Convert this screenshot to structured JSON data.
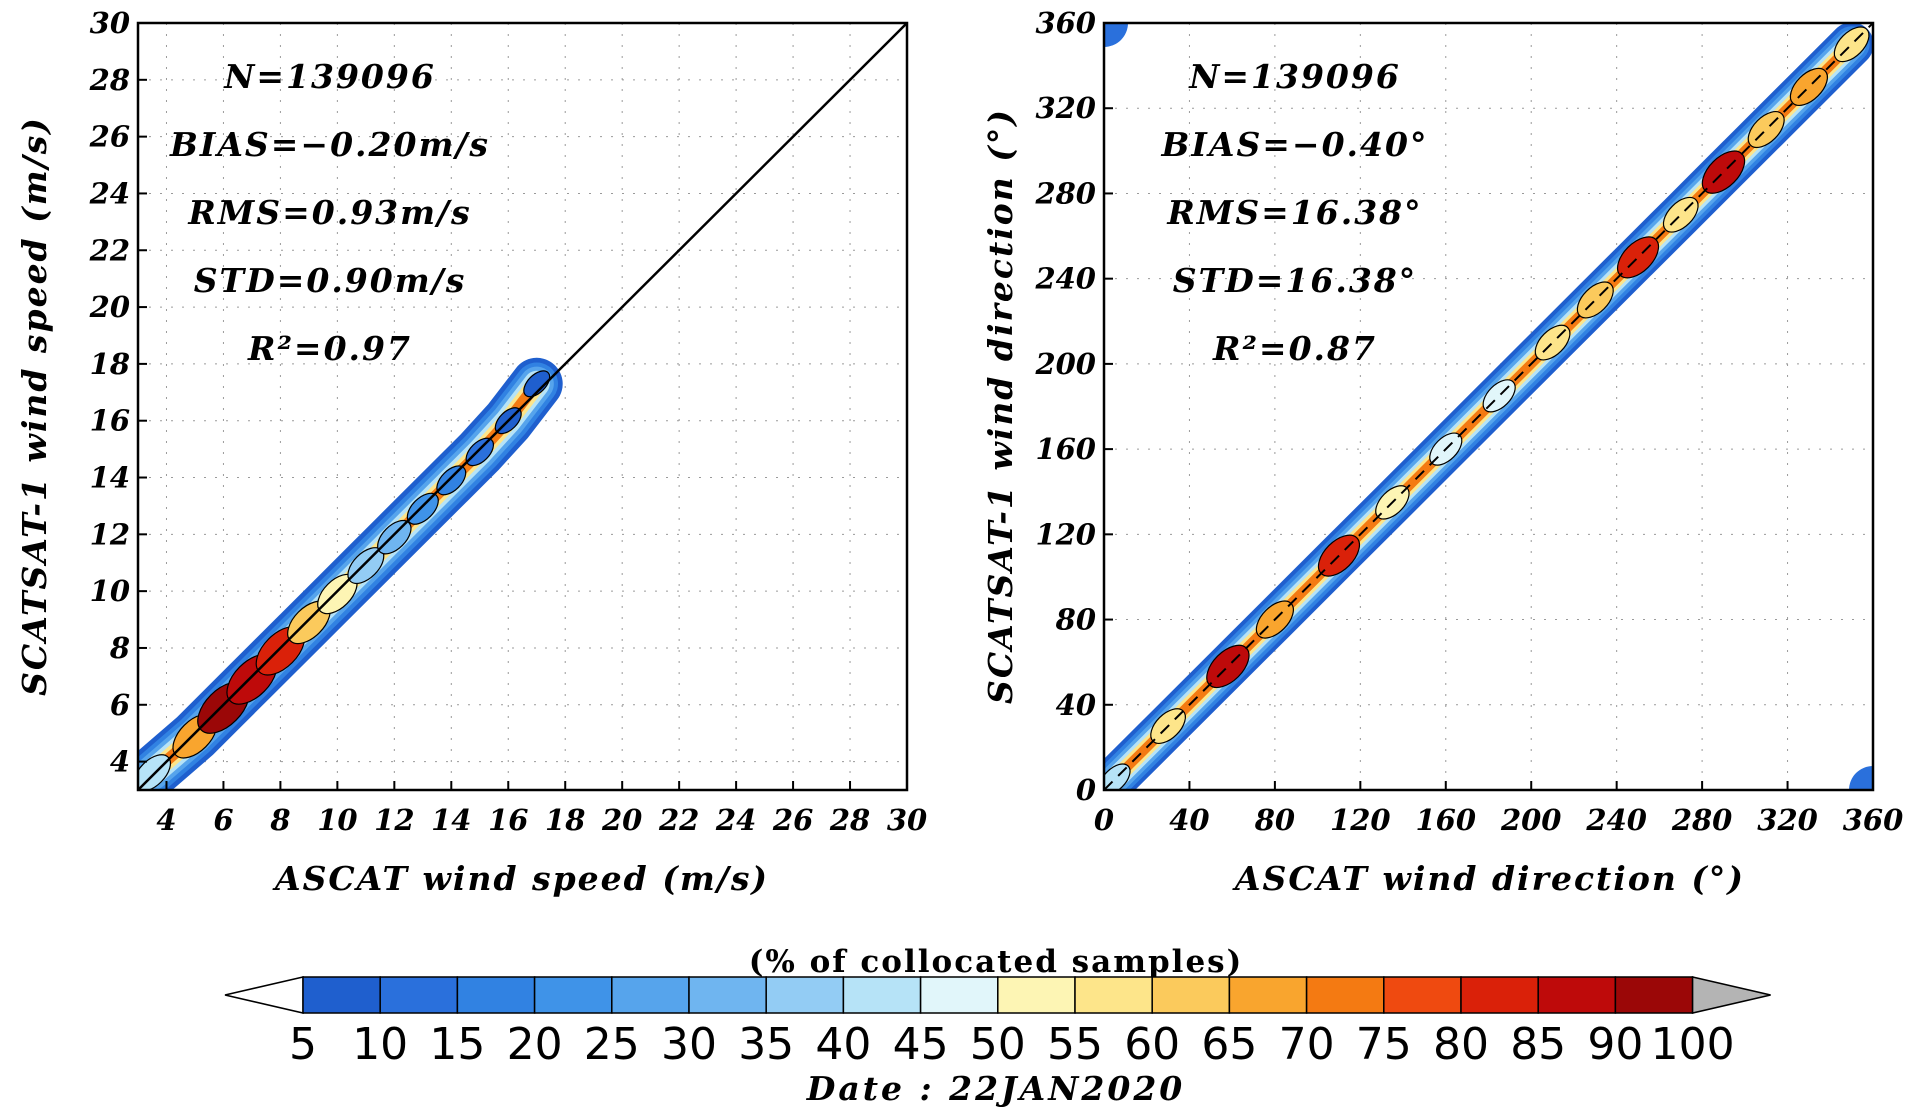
{
  "chart_data": [
    {
      "type": "heatmap",
      "panel": "wind-speed",
      "xlabel": "ASCAT wind speed (m/s)",
      "ylabel": "SCATSAT-1 wind speed (m/s)",
      "xlim": [
        3,
        30
      ],
      "ylim": [
        3,
        30
      ],
      "x_ticks": [
        4,
        6,
        8,
        10,
        12,
        14,
        16,
        18,
        20,
        22,
        24,
        26,
        28,
        30
      ],
      "y_ticks": [
        4,
        6,
        8,
        10,
        12,
        14,
        16,
        18,
        20,
        22,
        24,
        26,
        28,
        30
      ],
      "grid": true,
      "reference_line": "1:1",
      "stats": [
        "N=139096",
        "BIAS=−0.20m/s",
        "RMS=0.93m/s",
        "STD=0.90m/s",
        "R²=0.97"
      ],
      "density_ridge": {
        "x": [
          3.5,
          5,
          6,
          7,
          8,
          9,
          10,
          11,
          12,
          13,
          14,
          15,
          16,
          17
        ],
        "y": [
          3.6,
          4.9,
          5.9,
          6.9,
          7.9,
          8.9,
          9.9,
          10.9,
          11.9,
          12.9,
          13.9,
          14.9,
          16.0,
          17.3
        ],
        "percent": [
          40,
          65,
          90,
          85,
          80,
          60,
          50,
          38,
          30,
          22,
          15,
          10,
          5,
          5
        ]
      }
    },
    {
      "type": "heatmap",
      "panel": "wind-direction",
      "xlabel": "ASCAT wind direction (°)",
      "ylabel": "SCATSAT-1 wind direction (°)",
      "xlim": [
        0,
        360
      ],
      "ylim": [
        0,
        360
      ],
      "x_ticks": [
        0,
        40,
        80,
        120,
        160,
        200,
        240,
        280,
        320,
        360
      ],
      "y_ticks": [
        0,
        40,
        80,
        120,
        160,
        200,
        240,
        280,
        320,
        360
      ],
      "grid": true,
      "reference_line": "1:1",
      "stats": [
        "N=139096",
        "BIAS=−0.40°",
        "RMS=16.38°",
        "STD=16.38°",
        "R²=0.87"
      ],
      "density_ridge": {
        "x": [
          5,
          30,
          58,
          80,
          110,
          135,
          160,
          185,
          210,
          230,
          250,
          270,
          290,
          310,
          330,
          350
        ],
        "y": [
          5,
          30,
          58,
          80,
          110,
          135,
          160,
          185,
          210,
          230,
          250,
          270,
          290,
          310,
          330,
          350
        ],
        "percent": [
          40,
          55,
          85,
          65,
          80,
          50,
          45,
          45,
          55,
          60,
          80,
          55,
          85,
          60,
          65,
          55
        ]
      },
      "corner_blobs": [
        [
          0,
          360
        ],
        [
          360,
          0
        ]
      ]
    }
  ],
  "colorbar": {
    "title": "(% of collocated samples)",
    "labels": [
      "5",
      "10",
      "15",
      "20",
      "25",
      "30",
      "35",
      "40",
      "45",
      "50",
      "55",
      "60",
      "65",
      "70",
      "75",
      "80",
      "85",
      "90",
      "100"
    ],
    "colors": [
      "#1f5fce",
      "#2a70dc",
      "#3182e2",
      "#3f93e8",
      "#56a4ec",
      "#6fb5f0",
      "#93ccf4",
      "#b6e3f7",
      "#e1f6fa",
      "#fdf5b4",
      "#fde58a",
      "#fbca5c",
      "#f9a52e",
      "#f47a12",
      "#ef4a10",
      "#da2109",
      "#be0a0a",
      "#9b0707"
    ],
    "under_color": "#ffffff",
    "over_color": "#b4b4b4"
  },
  "footer": {
    "date": "Date : 22JAN2020"
  }
}
